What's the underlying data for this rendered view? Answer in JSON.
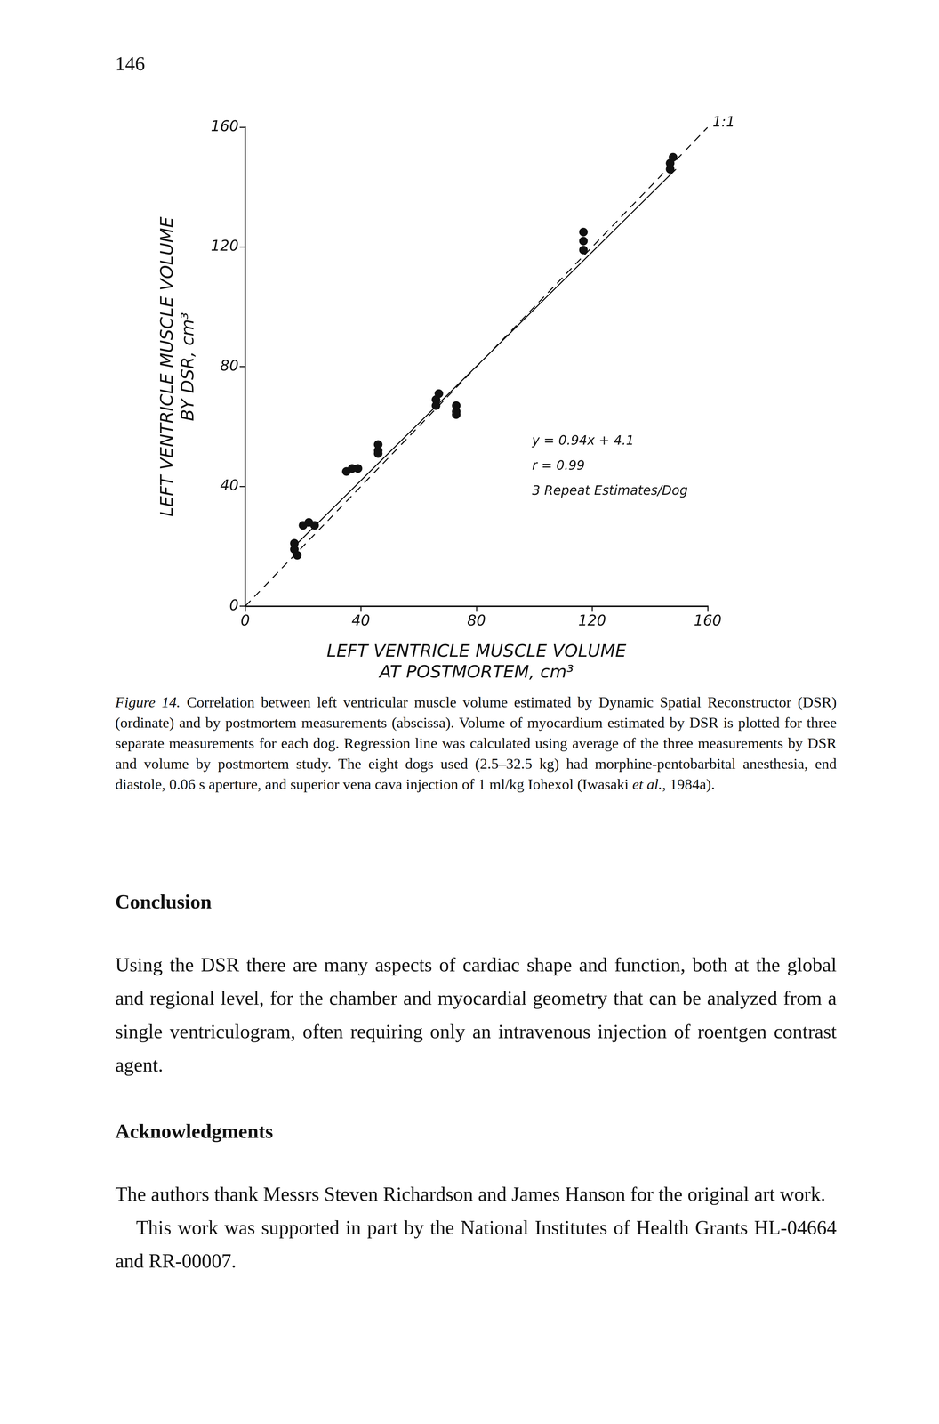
{
  "page_number": "146",
  "chart_data": {
    "type": "scatter",
    "x_label": [
      "LEFT VENTRICLE MUSCLE VOLUME",
      "AT POSTMORTEM, cm³"
    ],
    "y_label": [
      "LEFT VENTRICLE MUSCLE VOLUME",
      "BY DSR, cm³"
    ],
    "xlim": [
      0,
      160
    ],
    "ylim": [
      0,
      160
    ],
    "xticks": [
      0,
      40,
      80,
      120,
      160
    ],
    "yticks": [
      0,
      40,
      80,
      120,
      160
    ],
    "grid": false,
    "series": [
      {
        "type": "scatter",
        "marker": "circle",
        "color": "#111111",
        "x": [
          17,
          17,
          18,
          22,
          20,
          24,
          35,
          37,
          39,
          46,
          46,
          46,
          66,
          66,
          67,
          73,
          73,
          73,
          117,
          117,
          117,
          147,
          147,
          148
        ],
        "values": [
          21,
          19,
          17,
          28,
          27,
          27,
          45,
          46,
          46,
          51,
          52,
          54,
          67,
          69,
          71,
          64,
          65,
          67,
          119,
          122,
          125,
          146,
          148,
          150
        ]
      },
      {
        "type": "line",
        "name": "1:1",
        "line_style": "dashed",
        "color": "#111111",
        "x": [
          0,
          160
        ],
        "values": [
          0,
          160
        ]
      },
      {
        "type": "line",
        "line_style": "solid",
        "color": "#111111",
        "x": [
          17,
          149
        ],
        "values": [
          20,
          146
        ]
      }
    ],
    "annotations": [
      "y = 0.94x + 4.1",
      "r = 0.99",
      "3 Repeat Estimates/Dog"
    ]
  },
  "caption": [
    {
      "text": "Figure 14.",
      "italic": true
    },
    {
      "text": " Correlation between left ventricular muscle volume estimated by Dynamic Spatial Reconstructor (DSR) (ordinate) and by postmortem measurements (abscissa). Volume of myocardium estimated by DSR is plotted for three separate measurements for each dog. Regression line was calculated using average of the three measurements by DSR and volume by postmortem study. The eight dogs used (2.5–32.5 kg) had morphine-pentobarbital anesthesia, end diastole, 0.06 s aperture, and superior vena cava injection of 1 ml/kg Iohexol (Iwasaki ",
      "italic": false
    },
    {
      "text": "et al.",
      "italic": true
    },
    {
      "text": ", 1984a).",
      "italic": false
    }
  ],
  "sections": [
    {
      "heading": "Conclusion",
      "paragraphs": [
        "Using the DSR there are many aspects of cardiac shape and function, both at the global and regional level, for the chamber and myocardial geometry that can be analyzed from a single ventriculogram, often requiring only an intravenous injection of roentgen contrast agent."
      ]
    },
    {
      "heading": "Acknowledgments",
      "paragraphs": [
        "The authors thank Messrs Steven Richardson and James Hanson for the original art work.",
        "This work was supported in part by the National Institutes of Health Grants HL-04664 and RR-00007."
      ]
    }
  ]
}
